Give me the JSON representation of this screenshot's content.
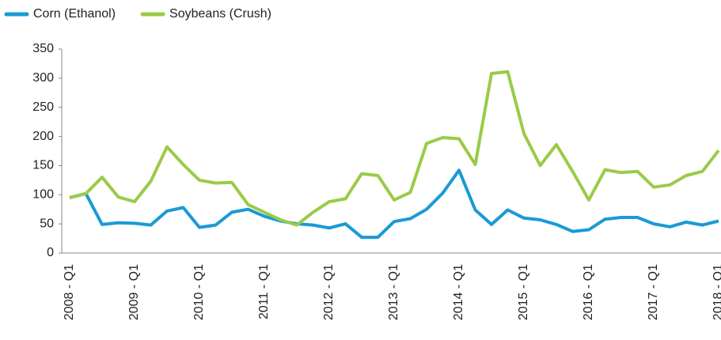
{
  "chart_data": {
    "type": "line",
    "categories": [
      "2008 - Q1",
      null,
      null,
      null,
      "2009 - Q1",
      null,
      null,
      null,
      "2010 - Q1",
      null,
      null,
      null,
      "2011 - Q1",
      null,
      null,
      null,
      "2012 - Q1",
      null,
      null,
      null,
      "2013 - Q1",
      null,
      null,
      null,
      "2014 - Q1",
      null,
      null,
      null,
      "2015 - Q1",
      null,
      null,
      null,
      "2016 - Q1",
      null,
      null,
      null,
      "2017 - Q1",
      null,
      null,
      null,
      "2018 - Q1"
    ],
    "series": [
      {
        "name": "Corn (Ethanol)",
        "color": "#1a9ad6",
        "values": [
          95,
          102,
          49,
          52,
          51,
          48,
          72,
          78,
          44,
          48,
          70,
          75,
          63,
          55,
          50,
          48,
          43,
          50,
          27,
          27,
          54,
          59,
          75,
          103,
          142,
          74,
          49,
          74,
          60,
          57,
          49,
          37,
          40,
          58,
          61,
          61,
          50,
          45,
          53,
          48,
          55
        ]
      },
      {
        "name": "Soybeans (Crush)",
        "color": "#9acb48",
        "values": [
          95,
          102,
          130,
          96,
          88,
          123,
          182,
          152,
          125,
          120,
          121,
          83,
          70,
          57,
          48,
          70,
          88,
          93,
          136,
          133,
          91,
          104,
          188,
          198,
          196,
          152,
          308,
          311,
          205,
          150,
          186,
          140,
          91,
          143,
          138,
          140,
          113,
          117,
          133,
          140,
          176
        ]
      }
    ],
    "ylim": [
      0,
      350
    ],
    "yticks": [
      0,
      50,
      100,
      150,
      200,
      250,
      300,
      350
    ],
    "legend": "top-left"
  }
}
